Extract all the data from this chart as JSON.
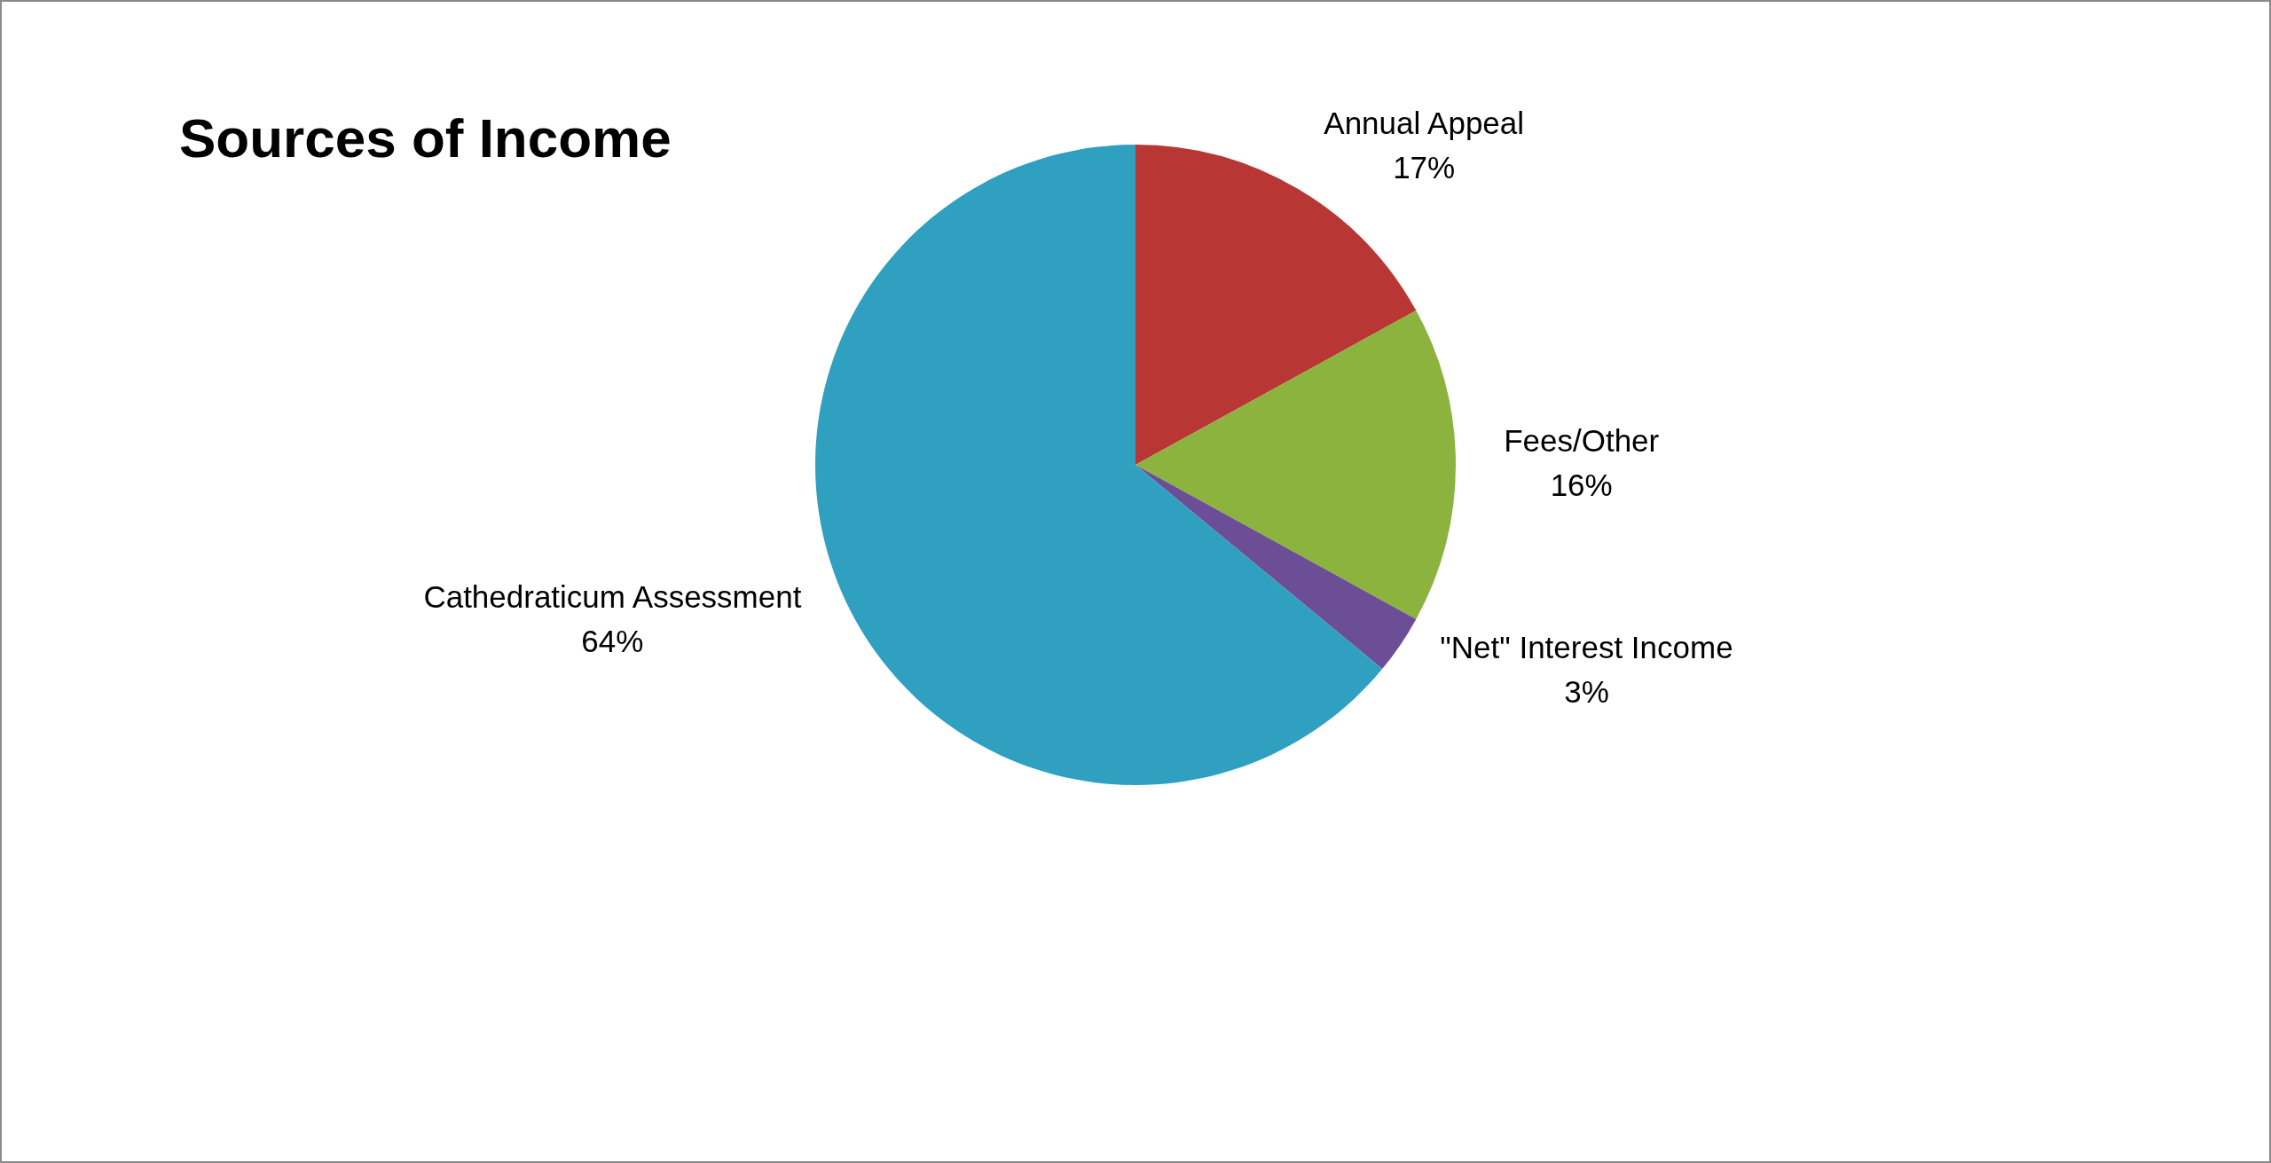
{
  "chart_data": {
    "type": "pie",
    "title": "Sources of Income",
    "categories": [
      "Annual Appeal",
      "Fees/Other",
      "\"Net\" Interest Income",
      "Cathedraticum Assessment"
    ],
    "values": [
      17,
      16,
      3,
      64
    ],
    "colors": [
      "#b83634",
      "#8db33f",
      "#6c4e96",
      "#2fa0c0"
    ],
    "value_labels": [
      "17%",
      "16%",
      "3%",
      "64%"
    ]
  }
}
